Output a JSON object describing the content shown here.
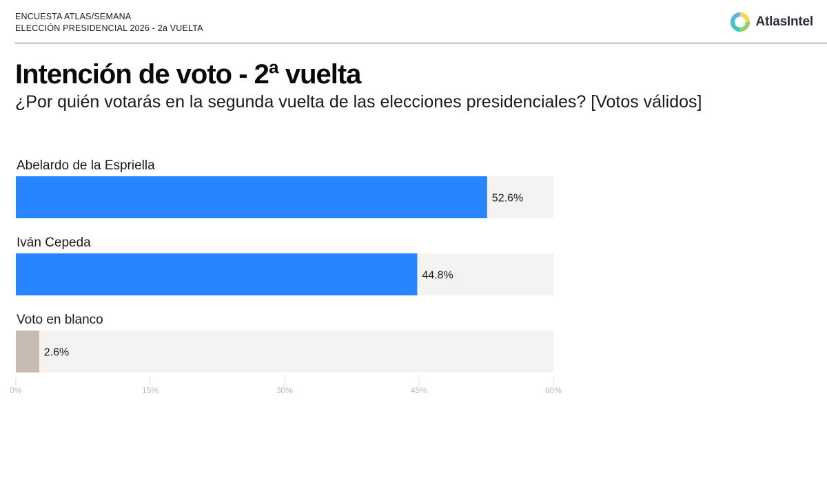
{
  "header": {
    "line1": "ENCUESTA ATLAS/SEMANA",
    "line2": "ELECCIÓN PRESIDENCIAL 2026 - 2a VUELTA",
    "logo_text": "AtlasIntel"
  },
  "chart_data": {
    "type": "bar",
    "orientation": "horizontal",
    "title": "Intención de voto - 2ª vuelta",
    "subtitle": "¿Por quién votarás en la segunda vuelta de las elecciones presidenciales? [Votos válidos]",
    "categories": [
      "Abelardo de la Espriella",
      "Iván Cepeda",
      "Voto en blanco"
    ],
    "values": [
      52.6,
      44.8,
      2.6
    ],
    "value_labels": [
      "52.6%",
      "44.8%",
      "2.6%"
    ],
    "bar_colors": [
      "#2685ff",
      "#2685ff",
      "#c8bcb2"
    ],
    "track_color": "#f4f3f1",
    "xlim": [
      0,
      60
    ],
    "xticks": [
      0,
      15,
      30,
      45,
      60
    ],
    "xtick_labels": [
      "0%",
      "15%",
      "30%",
      "45%",
      "60%"
    ],
    "grid": false,
    "legend": "none"
  }
}
